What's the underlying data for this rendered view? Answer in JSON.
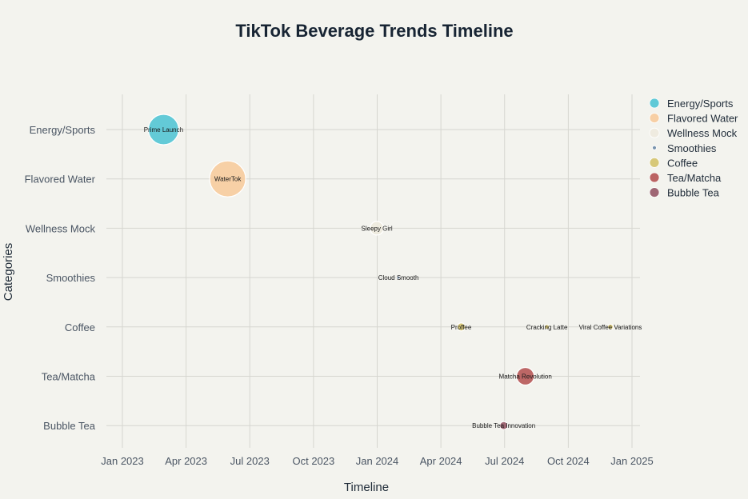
{
  "chart_data": {
    "type": "scatter",
    "title": "TikTok Beverage Trends Timeline",
    "xlabel": "Timeline",
    "ylabel": "Categories",
    "x_ticks": [
      "Jan 2023",
      "Apr 2023",
      "Jul 2023",
      "Oct 2023",
      "Jan 2024",
      "Apr 2024",
      "Jul 2024",
      "Oct 2024",
      "Jan 2025"
    ],
    "xlim": [
      "2023-01-01",
      "2025-01-01"
    ],
    "categories": [
      "Energy/Sports",
      "Flavored Water",
      "Wellness Mock",
      "Smoothies",
      "Coffee",
      "Tea/Matcha",
      "Bubble Tea"
    ],
    "grid": true,
    "legend_position": "right",
    "series": [
      {
        "name": "Energy/Sports",
        "color": "#4fc4d4",
        "points": [
          {
            "date": "2023-03-01",
            "label": "Prime Launch",
            "size": 38
          }
        ]
      },
      {
        "name": "Flavored Water",
        "color": "#f7cb9c",
        "points": [
          {
            "date": "2023-06-01",
            "label": "WaterTok",
            "size": 45
          }
        ]
      },
      {
        "name": "Wellness Mock",
        "color": "#eeeade",
        "points": [
          {
            "date": "2024-01-01",
            "label": "Sleepy Girl",
            "size": 17
          }
        ]
      },
      {
        "name": "Smoothies",
        "color": "#6b8aa6",
        "points": [
          {
            "date": "2024-02-01",
            "label": "Cloud Smooth",
            "size": 4
          }
        ]
      },
      {
        "name": "Coffee",
        "color": "#d4c36c",
        "points": [
          {
            "date": "2024-05-01",
            "label": "Proffee",
            "size": 10
          },
          {
            "date": "2024-09-01",
            "label": "Cracking Latte",
            "size": 6
          },
          {
            "date": "2024-12-01",
            "label": "Viral Coffee Variations",
            "size": 7
          }
        ]
      },
      {
        "name": "Tea/Matcha",
        "color": "#b55353",
        "points": [
          {
            "date": "2024-08-01",
            "label": "Matcha Revolution",
            "size": 22
          }
        ]
      },
      {
        "name": "Bubble Tea",
        "color": "#965766",
        "points": [
          {
            "date": "2024-07-01",
            "label": "Bubble Tea Innovation",
            "size": 10
          }
        ]
      }
    ]
  }
}
